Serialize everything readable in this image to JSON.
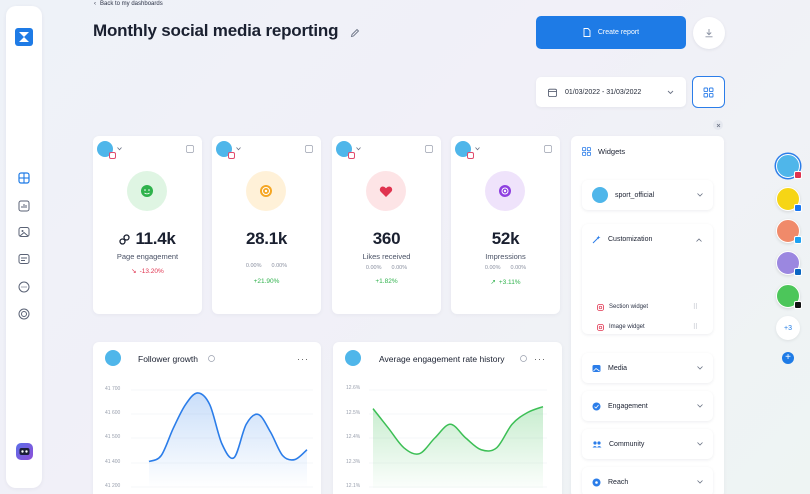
{
  "nav": {
    "back_label": "Back to my dashboards",
    "page_title": "Monthly social media reporting"
  },
  "toolbar": {
    "create_report_label": "Create report",
    "date_range": "01/03/2022 - 31/03/2022"
  },
  "colors": {
    "accent": "#1e7be6",
    "positive": "#2fb24c",
    "negative": "#e0334f",
    "engagement_bg": "#dff5e3",
    "followers_bg": "#fff1d8",
    "likes_bg": "#fde4e6",
    "impressions_bg": "#efe3fb"
  },
  "kpis": [
    {
      "icon": "smiley-icon",
      "value": "11.4k",
      "label": "Page engagement",
      "delta": "-13.20%",
      "delta_dir": "down"
    },
    {
      "icon": "target-icon",
      "value": "28.1k",
      "label": "",
      "sub_left": "0.00%",
      "sub_right": "0.00%",
      "delta": "+21.90%",
      "delta_dir": "up"
    },
    {
      "icon": "heart-icon",
      "value": "360",
      "label": "Likes received",
      "sub_left": "0.00%",
      "sub_right": "0.00%",
      "delta": "+1.82%",
      "delta_dir": "up"
    },
    {
      "icon": "eye-icon",
      "value": "52k",
      "label": "Impressions",
      "sub_left": "0.00%",
      "sub_right": "0.00%",
      "delta": "+3.11%",
      "delta_dir": "up"
    }
  ],
  "charts": {
    "follower_growth": {
      "title": "Follower growth",
      "ticks": [
        "41 700",
        "41 600",
        "41 500",
        "41 400",
        "41 200"
      ]
    },
    "engagement_history": {
      "title": "Average engagement rate history",
      "ticks": [
        "12.6%",
        "12.5%",
        "12.4%",
        "12.3%",
        "12.1%"
      ]
    }
  },
  "chart_data": [
    {
      "type": "line",
      "title": "Follower growth",
      "y_ticks": [
        "41 700",
        "41 600",
        "41 500",
        "41 400",
        "41 200"
      ],
      "series": [
        {
          "values": [
            41330,
            41360,
            41500,
            41620,
            41680,
            41620,
            41420,
            41350,
            41520,
            41570,
            41480,
            41360,
            41340,
            41390
          ]
        }
      ]
    },
    {
      "type": "area",
      "title": "Average engagement rate history",
      "y_ticks": [
        "12.6%",
        "12.5%",
        "12.4%",
        "12.3%",
        "12.1%"
      ],
      "series": [
        {
          "values": [
            12.5,
            12.4,
            12.3,
            12.27,
            12.35,
            12.42,
            12.35,
            12.29,
            12.3,
            12.42,
            12.48,
            12.51
          ]
        }
      ]
    }
  ],
  "widgets": {
    "header": "Widgets",
    "account": "sport_official",
    "customization": "Customization",
    "section_widget": "Section widget",
    "image_widget": "Image widget",
    "groups": [
      "Media",
      "Engagement",
      "Community",
      "Reach"
    ]
  },
  "rail": {
    "more_label": "+3"
  }
}
